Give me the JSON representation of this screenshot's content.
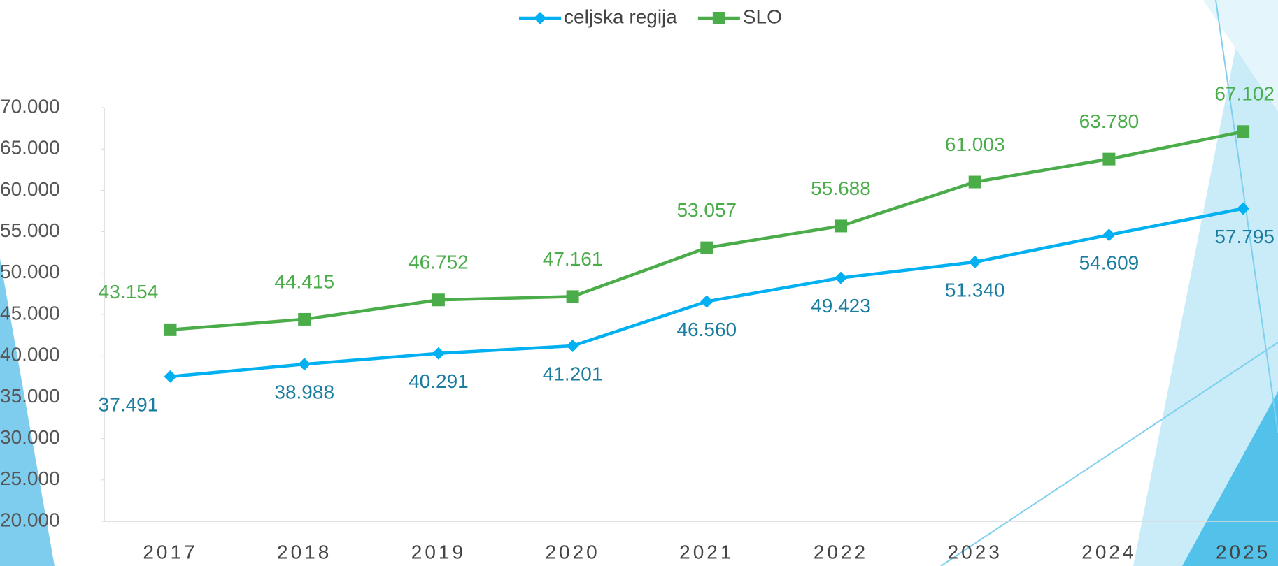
{
  "chart_data": {
    "type": "line",
    "categories": [
      "2017",
      "2018",
      "2019",
      "2020",
      "2021",
      "2022",
      "2023",
      "2024",
      "2025"
    ],
    "series": [
      {
        "name": "celjska regija",
        "color": "#00b0f0",
        "label_color": "#1a7c9e",
        "marker": "diamond",
        "values": [
          37491,
          38988,
          40291,
          41201,
          46560,
          49423,
          51340,
          54609,
          57795
        ],
        "value_labels": [
          "37.491",
          "38.988",
          "40.291",
          "41.201",
          "46.560",
          "49.423",
          "51.340",
          "54.609",
          "57.795"
        ]
      },
      {
        "name": "SLO",
        "color": "#4aad4a",
        "label_color": "#4aad4a",
        "marker": "square",
        "values": [
          43154,
          44415,
          46752,
          47161,
          53057,
          55688,
          61003,
          63780,
          67102
        ],
        "value_labels": [
          "43.154",
          "44.415",
          "46.752",
          "47.161",
          "53.057",
          "55.688",
          "61.003",
          "63.780",
          "67.102"
        ]
      }
    ],
    "ylim": [
      20000,
      70000
    ],
    "yticks": [
      {
        "value": 20000,
        "label": "20.000"
      },
      {
        "value": 25000,
        "label": "25.000"
      },
      {
        "value": 30000,
        "label": "30.000"
      },
      {
        "value": 35000,
        "label": "35.000"
      },
      {
        "value": 40000,
        "label": "40.000"
      },
      {
        "value": 45000,
        "label": "45.000"
      },
      {
        "value": 50000,
        "label": "50.000"
      },
      {
        "value": 55000,
        "label": "55.000"
      },
      {
        "value": 60000,
        "label": "60.000"
      },
      {
        "value": 65000,
        "label": "65.000"
      },
      {
        "value": 70000,
        "label": "70.000"
      }
    ],
    "legend": "top"
  }
}
